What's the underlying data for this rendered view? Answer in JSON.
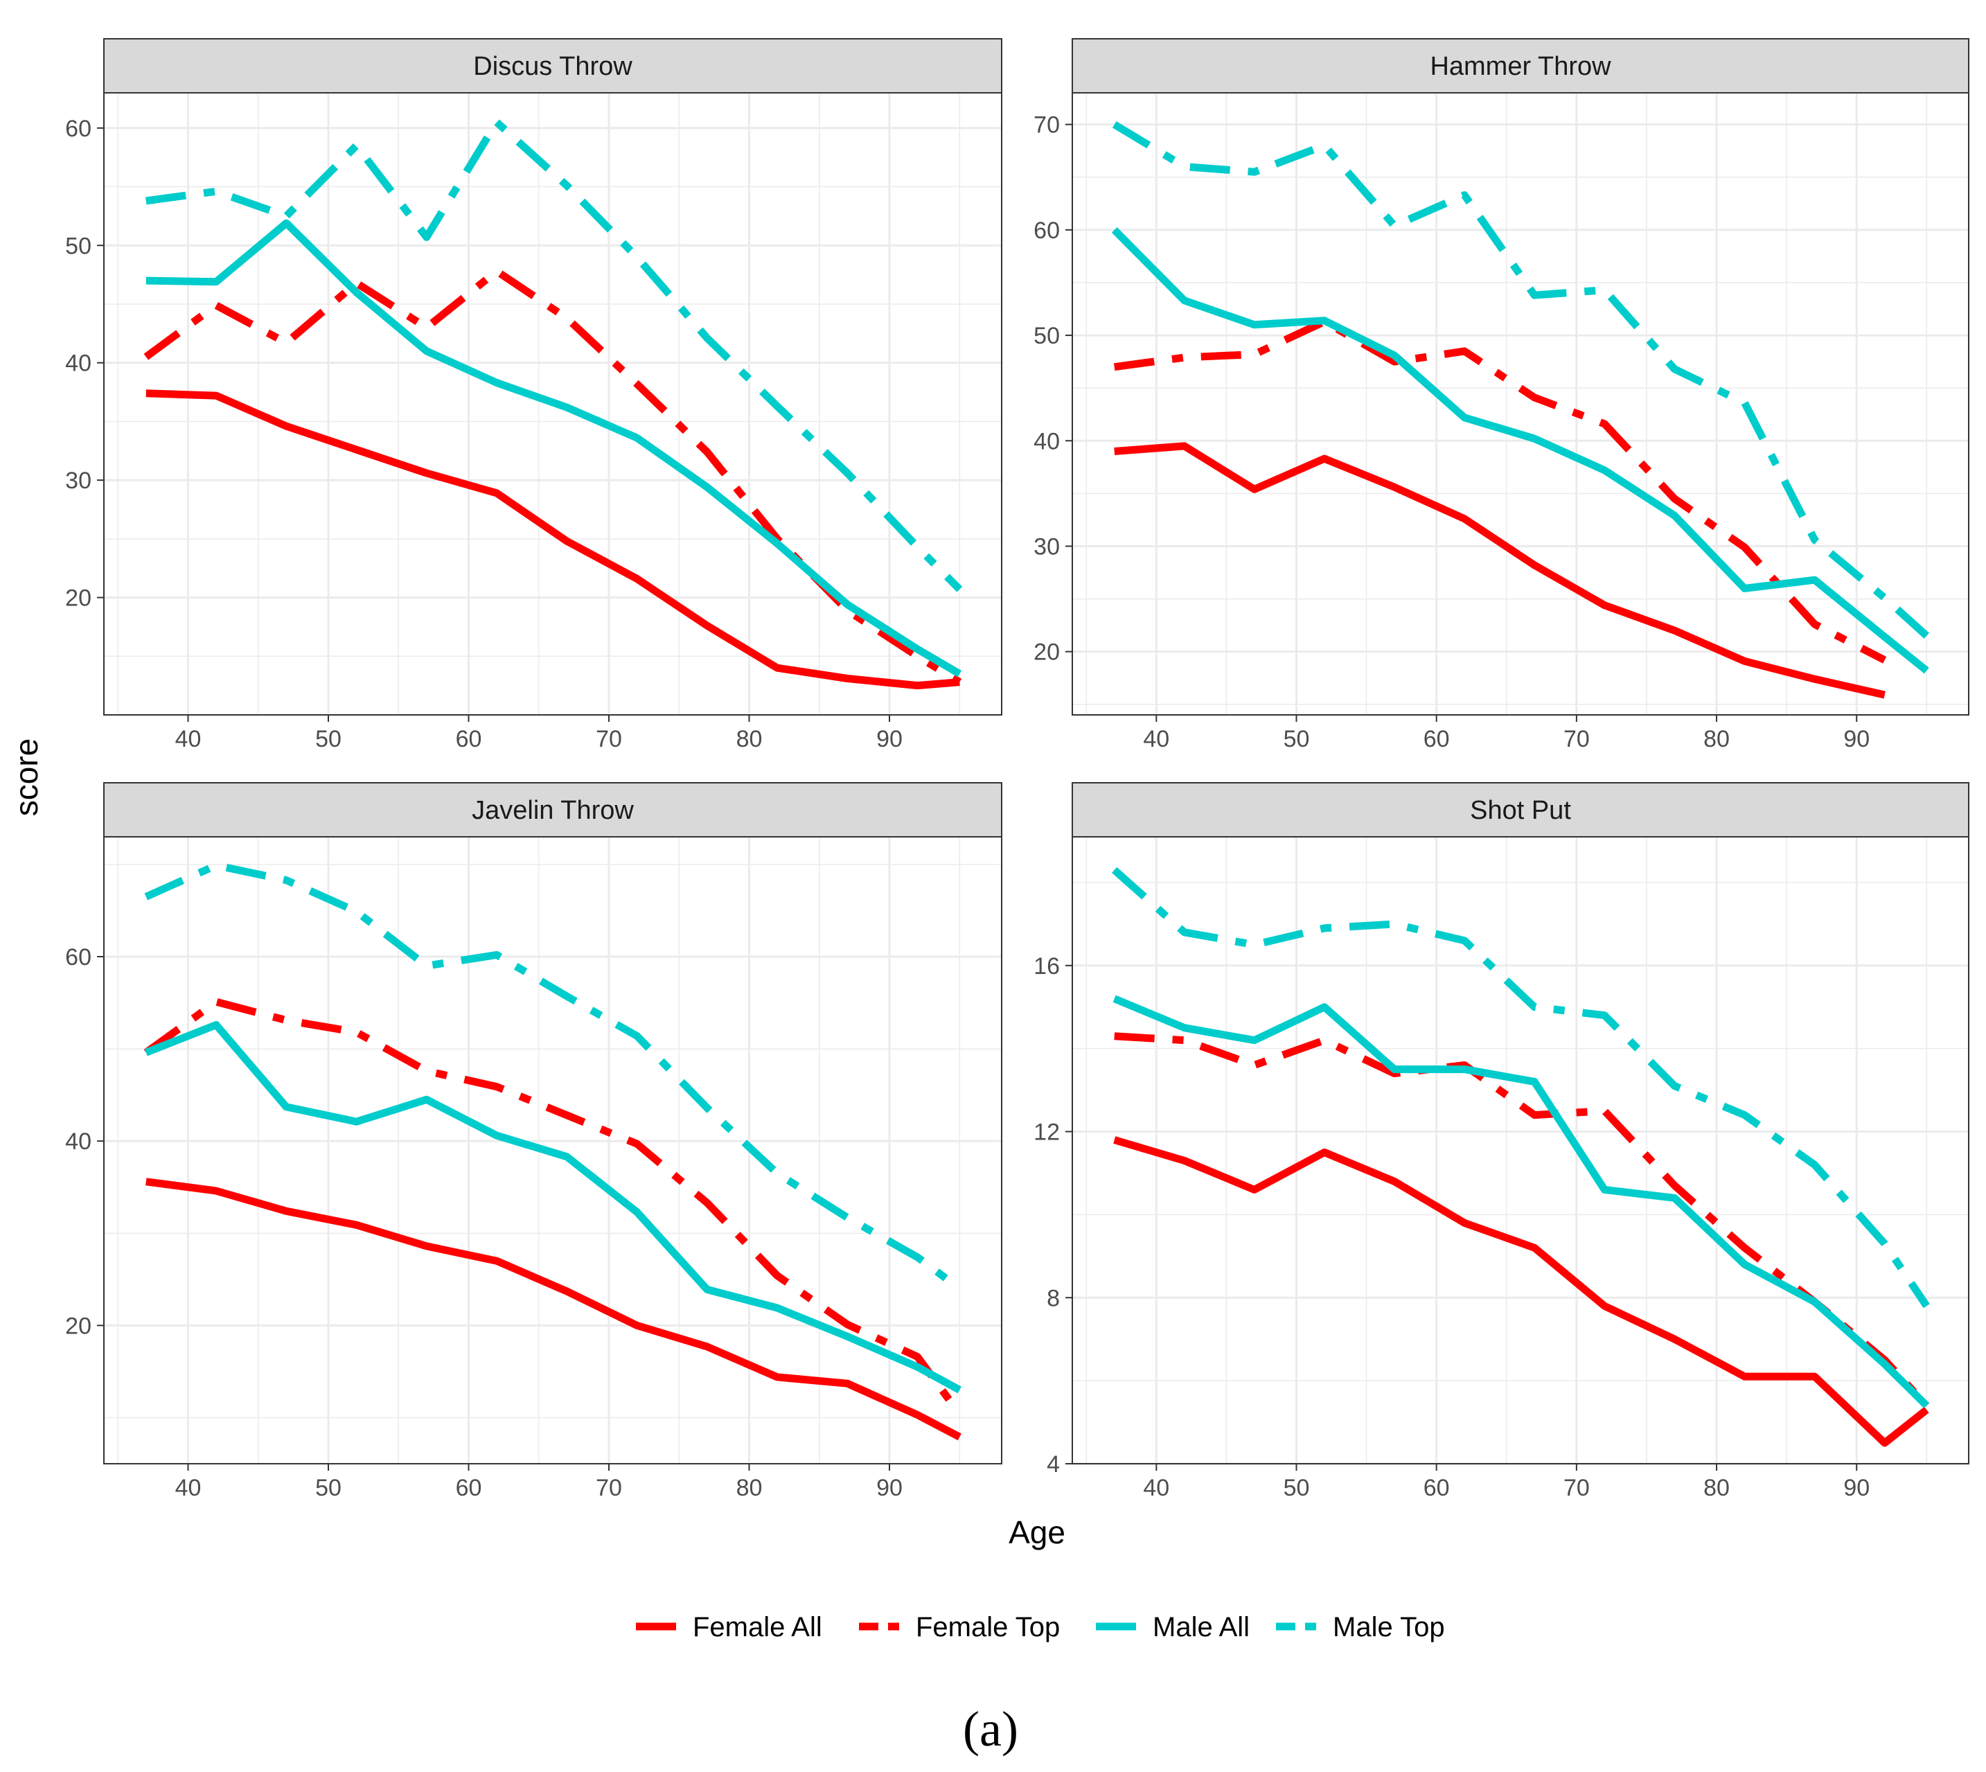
{
  "caption": "(a)",
  "xlabel": "Age",
  "ylabel": "score",
  "colors": {
    "female": "#ff0000",
    "male": "#00cccc"
  },
  "legend": [
    {
      "name": "Female All",
      "color": "#ff0000",
      "dashed": false
    },
    {
      "name": "Female Top",
      "color": "#ff0000",
      "dashed": true
    },
    {
      "name": "Male All",
      "color": "#00cccc",
      "dashed": false
    },
    {
      "name": "Male Top",
      "color": "#00cccc",
      "dashed": true
    }
  ],
  "chart_data": [
    {
      "type": "line",
      "title": "Discus Throw",
      "xlabel": "Age",
      "ylabel": "score",
      "xlim": [
        34,
        98
      ],
      "ylim": [
        10,
        63
      ],
      "xticks": [
        40,
        50,
        60,
        70,
        80,
        90
      ],
      "yticks": [
        20,
        30,
        40,
        50,
        60
      ],
      "series": [
        {
          "name": "Female All",
          "x": [
            37,
            42,
            47,
            52,
            57,
            62,
            67,
            72,
            77,
            82,
            87,
            92,
            95
          ],
          "values": [
            37.4,
            37.2,
            34.6,
            32.6,
            30.6,
            28.9,
            24.8,
            21.6,
            17.6,
            14.0,
            13.1,
            12.5,
            12.8
          ]
        },
        {
          "name": "Female Top",
          "x": [
            37,
            42,
            47,
            52,
            57,
            62,
            67,
            72,
            77,
            82,
            87,
            92,
            95
          ],
          "values": [
            40.5,
            44.9,
            41.7,
            46.8,
            43.0,
            47.8,
            43.8,
            38.2,
            32.4,
            25.0,
            18.9,
            15.0,
            12.8
          ]
        },
        {
          "name": "Male All",
          "x": [
            37,
            42,
            47,
            52,
            57,
            62,
            67,
            72,
            77,
            82,
            87,
            92,
            95
          ],
          "values": [
            47.0,
            46.9,
            51.9,
            46.0,
            41.0,
            38.3,
            36.2,
            33.6,
            29.4,
            24.6,
            19.4,
            15.6,
            13.5
          ]
        },
        {
          "name": "Male Top",
          "x": [
            37,
            42,
            47,
            52,
            57,
            62,
            67,
            72,
            77,
            82,
            87,
            92,
            95
          ],
          "values": [
            53.8,
            54.6,
            52.5,
            58.5,
            50.7,
            60.5,
            55.1,
            49.0,
            42.1,
            36.3,
            30.6,
            24.3,
            20.7
          ]
        }
      ]
    },
    {
      "type": "line",
      "title": "Hammer Throw",
      "xlabel": "Age",
      "ylabel": "score",
      "xlim": [
        34,
        98
      ],
      "ylim": [
        14,
        73
      ],
      "xticks": [
        40,
        50,
        60,
        70,
        80,
        90
      ],
      "yticks": [
        20,
        30,
        40,
        50,
        60,
        70
      ],
      "series": [
        {
          "name": "Female All",
          "x": [
            37,
            42,
            47,
            52,
            57,
            62,
            67,
            72,
            77,
            82,
            87,
            92
          ],
          "values": [
            39.0,
            39.5,
            35.4,
            38.3,
            35.6,
            32.6,
            28.2,
            24.4,
            22.0,
            19.1,
            17.4,
            15.9
          ]
        },
        {
          "name": "Female Top",
          "x": [
            37,
            42,
            47,
            52,
            57,
            62,
            67,
            72,
            77,
            82,
            87,
            92
          ],
          "values": [
            47.0,
            47.9,
            48.2,
            51.3,
            47.5,
            48.5,
            44.1,
            41.6,
            34.5,
            29.9,
            22.6,
            19.2
          ]
        },
        {
          "name": "Male All",
          "x": [
            37,
            42,
            47,
            52,
            57,
            62,
            67,
            72,
            77,
            82,
            87,
            92,
            95
          ],
          "values": [
            60.0,
            53.3,
            51.0,
            51.4,
            48.1,
            42.2,
            40.2,
            37.2,
            32.9,
            26.0,
            26.8,
            21.4,
            18.2
          ]
        },
        {
          "name": "Male Top",
          "x": [
            37,
            42,
            47,
            52,
            57,
            62,
            67,
            72,
            77,
            82,
            87,
            92,
            95
          ],
          "values": [
            70.0,
            66.0,
            65.5,
            68.0,
            60.4,
            63.3,
            53.8,
            54.3,
            46.8,
            43.6,
            30.6,
            25.1,
            21.5
          ]
        }
      ]
    },
    {
      "type": "line",
      "title": "Javelin Throw",
      "xlabel": "Age",
      "ylabel": "score",
      "xlim": [
        34,
        98
      ],
      "ylim": [
        5,
        73
      ],
      "xticks": [
        40,
        50,
        60,
        70,
        80,
        90
      ],
      "yticks": [
        20,
        40,
        60
      ],
      "series": [
        {
          "name": "Female All",
          "x": [
            37,
            42,
            47,
            52,
            57,
            62,
            67,
            72,
            77,
            82,
            87,
            92,
            95
          ],
          "values": [
            35.6,
            34.6,
            32.4,
            30.9,
            28.6,
            27.0,
            23.7,
            20.0,
            17.7,
            14.4,
            13.7,
            10.3,
            7.9
          ]
        },
        {
          "name": "Female Top",
          "x": [
            37,
            42,
            47,
            52,
            57,
            62,
            67,
            72,
            77,
            82,
            87,
            92,
            95
          ],
          "values": [
            49.6,
            55.1,
            53.1,
            51.8,
            47.6,
            45.9,
            42.8,
            39.7,
            33.3,
            25.4,
            20.1,
            16.6,
            10.4
          ]
        },
        {
          "name": "Male All",
          "x": [
            37,
            42,
            47,
            52,
            57,
            62,
            67,
            72,
            77,
            82,
            87,
            92,
            95
          ],
          "values": [
            49.6,
            52.6,
            43.7,
            42.1,
            44.5,
            40.6,
            38.3,
            32.3,
            23.9,
            21.9,
            18.8,
            15.5,
            13.0
          ]
        },
        {
          "name": "Male Top",
          "x": [
            37,
            42,
            47,
            52,
            57,
            62,
            67,
            72,
            77,
            82,
            87,
            92,
            95
          ],
          "values": [
            66.5,
            69.9,
            68.3,
            64.9,
            59.0,
            60.2,
            55.7,
            51.4,
            43.6,
            36.5,
            31.7,
            27.4,
            24.0
          ]
        }
      ]
    },
    {
      "type": "line",
      "title": "Shot Put",
      "xlabel": "Age",
      "ylabel": "score",
      "xlim": [
        34,
        98
      ],
      "ylim": [
        4,
        19.1
      ],
      "xticks": [
        40,
        50,
        60,
        70,
        80,
        90
      ],
      "yticks": [
        4,
        8,
        12,
        16
      ],
      "series": [
        {
          "name": "Female All",
          "x": [
            37,
            42,
            47,
            52,
            57,
            62,
            67,
            72,
            77,
            82,
            87,
            92,
            95
          ],
          "values": [
            11.8,
            11.3,
            10.6,
            11.5,
            10.8,
            9.8,
            9.2,
            7.8,
            7.0,
            6.1,
            6.1,
            4.5,
            5.3
          ]
        },
        {
          "name": "Female Top",
          "x": [
            37,
            42,
            47,
            52,
            57,
            62,
            67,
            72,
            77,
            82,
            87,
            92,
            95
          ],
          "values": [
            14.3,
            14.2,
            13.6,
            14.2,
            13.4,
            13.6,
            12.4,
            12.5,
            10.7,
            9.2,
            7.9,
            6.5,
            5.4
          ]
        },
        {
          "name": "Male All",
          "x": [
            37,
            42,
            47,
            52,
            57,
            62,
            67,
            72,
            77,
            82,
            87,
            92,
            95
          ],
          "values": [
            15.2,
            14.5,
            14.2,
            15.0,
            13.5,
            13.5,
            13.2,
            10.6,
            10.4,
            8.8,
            7.9,
            6.4,
            5.4
          ]
        },
        {
          "name": "Male Top",
          "x": [
            37,
            42,
            47,
            52,
            57,
            62,
            67,
            72,
            77,
            82,
            87,
            92,
            95
          ],
          "values": [
            18.3,
            16.8,
            16.5,
            16.9,
            17.0,
            16.6,
            15.0,
            14.8,
            13.1,
            12.4,
            11.2,
            9.3,
            7.8
          ]
        }
      ]
    }
  ]
}
